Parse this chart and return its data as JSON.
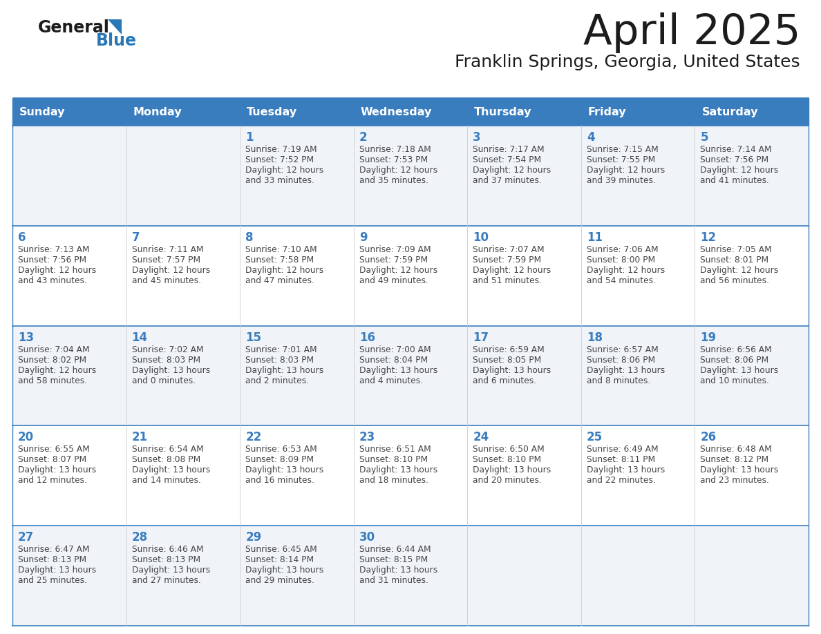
{
  "title": "April 2025",
  "subtitle": "Franklin Springs, Georgia, United States",
  "days_of_week": [
    "Sunday",
    "Monday",
    "Tuesday",
    "Wednesday",
    "Thursday",
    "Friday",
    "Saturday"
  ],
  "header_bg": "#3a7dbf",
  "header_text": "#ffffff",
  "row_bg_light": "#f0f4f8",
  "row_bg_white": "#ffffff",
  "border_color": "#3a7dbf",
  "day_number_color": "#3a7dbf",
  "text_color": "#444444",
  "calendar_data": [
    [
      {
        "day": "",
        "sunrise": "",
        "sunset": "",
        "daylight": ""
      },
      {
        "day": "",
        "sunrise": "",
        "sunset": "",
        "daylight": ""
      },
      {
        "day": "1",
        "sunrise": "7:19 AM",
        "sunset": "7:52 PM",
        "daylight": "12 hours\nand 33 minutes."
      },
      {
        "day": "2",
        "sunrise": "7:18 AM",
        "sunset": "7:53 PM",
        "daylight": "12 hours\nand 35 minutes."
      },
      {
        "day": "3",
        "sunrise": "7:17 AM",
        "sunset": "7:54 PM",
        "daylight": "12 hours\nand 37 minutes."
      },
      {
        "day": "4",
        "sunrise": "7:15 AM",
        "sunset": "7:55 PM",
        "daylight": "12 hours\nand 39 minutes."
      },
      {
        "day": "5",
        "sunrise": "7:14 AM",
        "sunset": "7:56 PM",
        "daylight": "12 hours\nand 41 minutes."
      }
    ],
    [
      {
        "day": "6",
        "sunrise": "7:13 AM",
        "sunset": "7:56 PM",
        "daylight": "12 hours\nand 43 minutes."
      },
      {
        "day": "7",
        "sunrise": "7:11 AM",
        "sunset": "7:57 PM",
        "daylight": "12 hours\nand 45 minutes."
      },
      {
        "day": "8",
        "sunrise": "7:10 AM",
        "sunset": "7:58 PM",
        "daylight": "12 hours\nand 47 minutes."
      },
      {
        "day": "9",
        "sunrise": "7:09 AM",
        "sunset": "7:59 PM",
        "daylight": "12 hours\nand 49 minutes."
      },
      {
        "day": "10",
        "sunrise": "7:07 AM",
        "sunset": "7:59 PM",
        "daylight": "12 hours\nand 51 minutes."
      },
      {
        "day": "11",
        "sunrise": "7:06 AM",
        "sunset": "8:00 PM",
        "daylight": "12 hours\nand 54 minutes."
      },
      {
        "day": "12",
        "sunrise": "7:05 AM",
        "sunset": "8:01 PM",
        "daylight": "12 hours\nand 56 minutes."
      }
    ],
    [
      {
        "day": "13",
        "sunrise": "7:04 AM",
        "sunset": "8:02 PM",
        "daylight": "12 hours\nand 58 minutes."
      },
      {
        "day": "14",
        "sunrise": "7:02 AM",
        "sunset": "8:03 PM",
        "daylight": "13 hours\nand 0 minutes."
      },
      {
        "day": "15",
        "sunrise": "7:01 AM",
        "sunset": "8:03 PM",
        "daylight": "13 hours\nand 2 minutes."
      },
      {
        "day": "16",
        "sunrise": "7:00 AM",
        "sunset": "8:04 PM",
        "daylight": "13 hours\nand 4 minutes."
      },
      {
        "day": "17",
        "sunrise": "6:59 AM",
        "sunset": "8:05 PM",
        "daylight": "13 hours\nand 6 minutes."
      },
      {
        "day": "18",
        "sunrise": "6:57 AM",
        "sunset": "8:06 PM",
        "daylight": "13 hours\nand 8 minutes."
      },
      {
        "day": "19",
        "sunrise": "6:56 AM",
        "sunset": "8:06 PM",
        "daylight": "13 hours\nand 10 minutes."
      }
    ],
    [
      {
        "day": "20",
        "sunrise": "6:55 AM",
        "sunset": "8:07 PM",
        "daylight": "13 hours\nand 12 minutes."
      },
      {
        "day": "21",
        "sunrise": "6:54 AM",
        "sunset": "8:08 PM",
        "daylight": "13 hours\nand 14 minutes."
      },
      {
        "day": "22",
        "sunrise": "6:53 AM",
        "sunset": "8:09 PM",
        "daylight": "13 hours\nand 16 minutes."
      },
      {
        "day": "23",
        "sunrise": "6:51 AM",
        "sunset": "8:10 PM",
        "daylight": "13 hours\nand 18 minutes."
      },
      {
        "day": "24",
        "sunrise": "6:50 AM",
        "sunset": "8:10 PM",
        "daylight": "13 hours\nand 20 minutes."
      },
      {
        "day": "25",
        "sunrise": "6:49 AM",
        "sunset": "8:11 PM",
        "daylight": "13 hours\nand 22 minutes."
      },
      {
        "day": "26",
        "sunrise": "6:48 AM",
        "sunset": "8:12 PM",
        "daylight": "13 hours\nand 23 minutes."
      }
    ],
    [
      {
        "day": "27",
        "sunrise": "6:47 AM",
        "sunset": "8:13 PM",
        "daylight": "13 hours\nand 25 minutes."
      },
      {
        "day": "28",
        "sunrise": "6:46 AM",
        "sunset": "8:13 PM",
        "daylight": "13 hours\nand 27 minutes."
      },
      {
        "day": "29",
        "sunrise": "6:45 AM",
        "sunset": "8:14 PM",
        "daylight": "13 hours\nand 29 minutes."
      },
      {
        "day": "30",
        "sunrise": "6:44 AM",
        "sunset": "8:15 PM",
        "daylight": "13 hours\nand 31 minutes."
      },
      {
        "day": "",
        "sunrise": "",
        "sunset": "",
        "daylight": ""
      },
      {
        "day": "",
        "sunrise": "",
        "sunset": "",
        "daylight": ""
      },
      {
        "day": "",
        "sunrise": "",
        "sunset": "",
        "daylight": ""
      }
    ]
  ]
}
